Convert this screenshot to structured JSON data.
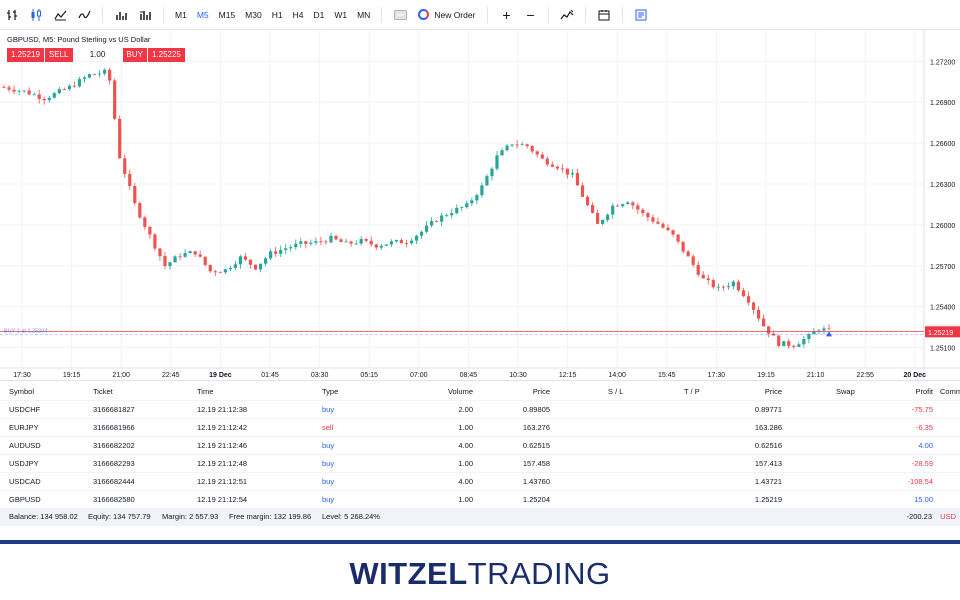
{
  "toolbar": {
    "icons": [
      "bar-chart-icon",
      "candles-icon",
      "area-icon",
      "line-icon",
      "volume-icon",
      "indicators-icon"
    ],
    "timeframes": [
      {
        "label": "M1",
        "active": false
      },
      {
        "label": "M5",
        "active": true
      },
      {
        "label": "M15",
        "active": false
      },
      {
        "label": "M30",
        "active": false
      },
      {
        "label": "H1",
        "active": false
      },
      {
        "label": "H4",
        "active": false
      },
      {
        "label": "D1",
        "active": false
      },
      {
        "label": "W1",
        "active": false
      },
      {
        "label": "MN",
        "active": false
      }
    ],
    "new_order_label": "New Order",
    "zoom_in": "+",
    "zoom_out": "−"
  },
  "chart": {
    "title": "GBPUSD, M5: Pound Sterling vs US Dollar",
    "sell_price": "1.25219",
    "sell_label": "SELL",
    "quantity": "1.00",
    "buy_label": "BUY",
    "buy_price": "1.25225",
    "position_line_label": "BUY 1 at 1.25204",
    "ask_label": "1.25225",
    "bid_label": "1.25219",
    "colors": {
      "up": "#26a69a",
      "down": "#ef5350",
      "bid": "#f23645",
      "accent": "#2962ff"
    }
  },
  "chart_data": {
    "type": "candlestick",
    "y_ticks": [
      "1.27200",
      "1.26900",
      "1.26600",
      "1.26300",
      "1.26000",
      "1.25700",
      "1.25400",
      "1.25100"
    ],
    "y_range": [
      1.2495,
      1.2743
    ],
    "x_ticks": [
      "17:30",
      "19:15",
      "21:00",
      "22:45",
      "19 Dec",
      "01:45",
      "03:30",
      "05:15",
      "07:00",
      "08:45",
      "10:30",
      "12:15",
      "14:00",
      "15:45",
      "17:30",
      "19:15",
      "21:10",
      "22:55",
      "20 Dec"
    ],
    "x_bold": [
      "19 Dec",
      "20 Dec"
    ],
    "anchors": [
      [
        0,
        1.2701
      ],
      [
        4,
        1.2698
      ],
      [
        8,
        1.2693
      ],
      [
        10,
        1.2696
      ],
      [
        13,
        1.2701
      ],
      [
        17,
        1.271
      ],
      [
        20,
        1.2712
      ],
      [
        21,
        1.2706
      ],
      [
        23,
        1.265
      ],
      [
        26,
        1.2615
      ],
      [
        29,
        1.2592
      ],
      [
        32,
        1.257
      ],
      [
        35,
        1.2578
      ],
      [
        38,
        1.258
      ],
      [
        41,
        1.2566
      ],
      [
        44,
        1.2567
      ],
      [
        47,
        1.2576
      ],
      [
        50,
        1.2569
      ],
      [
        53,
        1.2579
      ],
      [
        56,
        1.2583
      ],
      [
        59,
        1.2586
      ],
      [
        62,
        1.2587
      ],
      [
        65,
        1.259
      ],
      [
        68,
        1.2586
      ],
      [
        71,
        1.2588
      ],
      [
        74,
        1.2585
      ],
      [
        77,
        1.2587
      ],
      [
        80,
        1.2588
      ],
      [
        83,
        1.2595
      ],
      [
        86,
        1.2604
      ],
      [
        89,
        1.261
      ],
      [
        92,
        1.2614
      ],
      [
        95,
        1.2628
      ],
      [
        98,
        1.265
      ],
      [
        101,
        1.266
      ],
      [
        104,
        1.2658
      ],
      [
        107,
        1.2648
      ],
      [
        110,
        1.2643
      ],
      [
        113,
        1.2636
      ],
      [
        116,
        1.2614
      ],
      [
        118,
        1.26
      ],
      [
        121,
        1.2614
      ],
      [
        124,
        1.2618
      ],
      [
        127,
        1.2608
      ],
      [
        130,
        1.2601
      ],
      [
        133,
        1.2592
      ],
      [
        136,
        1.2576
      ],
      [
        139,
        1.256
      ],
      [
        142,
        1.2553
      ],
      [
        145,
        1.2558
      ],
      [
        148,
        1.2545
      ],
      [
        151,
        1.2526
      ],
      [
        154,
        1.2513
      ],
      [
        157,
        1.2512
      ],
      [
        160,
        1.2518
      ],
      [
        162,
        1.2524
      ],
      [
        164,
        1.2522
      ]
    ],
    "candle_count": 165
  },
  "positions": {
    "headers": {
      "symbol": "Symbol",
      "ticket": "Ticket",
      "time": "Time",
      "type": "Type",
      "volume": "Volume",
      "price": "Price",
      "sl": "S / L",
      "tp": "T / P",
      "current": "Price",
      "swap": "Swap",
      "profit": "Profit",
      "commission": "Comm"
    },
    "rows": [
      {
        "symbol": "USDCHF",
        "ticket": "3166681827",
        "time": "12.19 21:12:38",
        "type": "buy",
        "volume": "2.00",
        "price": "0.89805",
        "current": "0.89771",
        "profit": "-75.75"
      },
      {
        "symbol": "EURJPY",
        "ticket": "3166681966",
        "time": "12.19 21:12:42",
        "type": "sell",
        "volume": "1.00",
        "price": "163.276",
        "current": "163.286",
        "profit": "-6.35"
      },
      {
        "symbol": "AUDUSD",
        "ticket": "3166682202",
        "time": "12.19 21:12:46",
        "type": "buy",
        "volume": "4.00",
        "price": "0.62515",
        "current": "0.62516",
        "profit": "4.00"
      },
      {
        "symbol": "USDJPY",
        "ticket": "3166682293",
        "time": "12.19 21:12:48",
        "type": "buy",
        "volume": "1.00",
        "price": "157.458",
        "current": "157.413",
        "profit": "-28.59"
      },
      {
        "symbol": "USDCAD",
        "ticket": "3166682444",
        "time": "12.19 21:12:51",
        "type": "buy",
        "volume": "4.00",
        "price": "1.43760",
        "current": "1.43721",
        "profit": "-108.54"
      },
      {
        "symbol": "GBPUSD",
        "ticket": "3166682580",
        "time": "12.19 21:12:54",
        "type": "buy",
        "volume": "1.00",
        "price": "1.25204",
        "current": "1.25219",
        "profit": "15.00"
      }
    ],
    "summary": {
      "balance": "Balance: 134 958.02",
      "equity": "Equity: 134 757.79",
      "margin": "Margin: 2 557.93",
      "free_margin": "Free margin: 132 199.86",
      "level": "Level: 5 268.24%",
      "total_profit": "-200.23",
      "currency": "USD"
    }
  },
  "brand": {
    "part1": "WITZEL",
    "part2": "TRADING"
  }
}
